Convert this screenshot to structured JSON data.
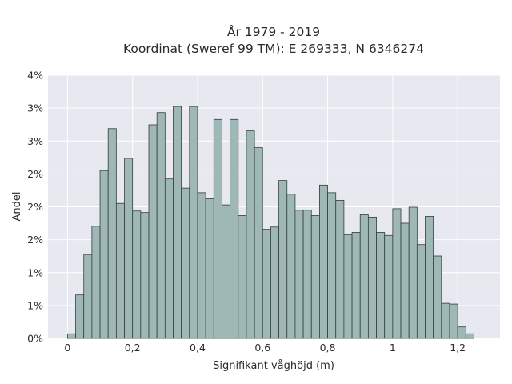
{
  "chart_data": {
    "type": "bar",
    "title": "År 1979 - 2019",
    "subtitle": "Koordinat (Sweref 99 TM): E 269333, N 6346274",
    "xlabel": "Signifikant våghöjd (m)",
    "ylabel": "Andel",
    "x_ticks": [
      "0",
      "0,2",
      "0,4",
      "0,6",
      "0,8",
      "1",
      "1,2"
    ],
    "y_ticks": [
      "0%",
      "1%",
      "1%",
      "2%",
      "2%",
      "2%",
      "3%",
      "3%",
      "4%"
    ],
    "xlim": [
      -0.06,
      1.33
    ],
    "ylim": [
      0,
      3.45
    ],
    "bin_width": 0.025,
    "bin_starts": [
      0.0,
      0.025,
      0.05,
      0.075,
      0.1,
      0.125,
      0.15,
      0.175,
      0.2,
      0.225,
      0.25,
      0.275,
      0.3,
      0.325,
      0.35,
      0.375,
      0.4,
      0.425,
      0.45,
      0.475,
      0.5,
      0.525,
      0.55,
      0.575,
      0.6,
      0.625,
      0.65,
      0.675,
      0.7,
      0.725,
      0.75,
      0.775,
      0.8,
      0.825,
      0.85,
      0.875,
      0.9,
      0.925,
      0.95,
      0.975,
      1.0,
      1.025,
      1.05,
      1.075,
      1.1,
      1.125,
      1.15,
      1.175,
      1.2,
      1.225
    ],
    "values": [
      0.06,
      0.57,
      1.1,
      1.47,
      2.2,
      2.75,
      1.77,
      2.36,
      1.67,
      1.65,
      2.8,
      2.96,
      2.09,
      3.04,
      1.97,
      3.04,
      1.91,
      1.83,
      2.87,
      1.75,
      2.87,
      1.61,
      2.72,
      2.5,
      1.43,
      1.46,
      2.07,
      1.89,
      1.68,
      1.68,
      1.61,
      2.01,
      1.91,
      1.81,
      1.36,
      1.39,
      1.62,
      1.59,
      1.39,
      1.35,
      1.7,
      1.51,
      1.72,
      1.23,
      1.6,
      1.08,
      0.46,
      0.45,
      0.15,
      0.06
    ],
    "bar_color": "#9fb8b6",
    "bar_edge_color": "#2f3f3e",
    "plot_bg": "#e8e8f0",
    "grid_color": "#ffffff",
    "grid": true
  }
}
